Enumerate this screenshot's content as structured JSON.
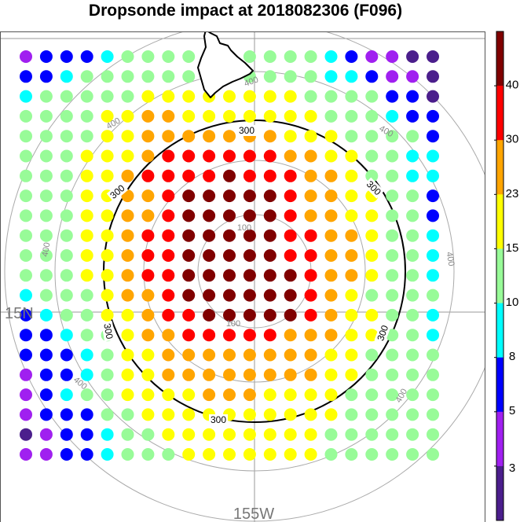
{
  "title": "Dropsonde impact at 2018082306 (F096)",
  "map": {
    "lat_label": "15N",
    "lon_label": "155W"
  },
  "colors": {
    "bins": [
      "#4b1e8c",
      "#a020f0",
      "#0000ff",
      "#00ffff",
      "#98fb98",
      "#ffff00",
      "#ffa500",
      "#ff0000",
      "#800000"
    ],
    "ring_gray": "#aaaaaa",
    "ring_black": "#000000",
    "coast": "#000000"
  },
  "colorbar": {
    "ticks": [
      "3",
      "5",
      "8",
      "10",
      "15",
      "23",
      "30",
      "40"
    ]
  },
  "rings": {
    "labels_gray": [
      {
        "text": "100"
      },
      {
        "text": "100"
      },
      {
        "text": "400"
      },
      {
        "text": "400"
      },
      {
        "text": "400"
      },
      {
        "text": "400"
      },
      {
        "text": "400"
      },
      {
        "text": "400"
      },
      {
        "text": "400"
      }
    ],
    "labels_black": [
      {
        "text": "300"
      },
      {
        "text": "300"
      },
      {
        "text": "300"
      },
      {
        "text": "300"
      },
      {
        "text": "300"
      }
    ]
  },
  "chart_data": {
    "type": "heatmap",
    "title": "Dropsonde impact at 2018082306 (F096)",
    "colorbar_ticks": [
      3,
      5,
      8,
      10,
      15,
      23,
      30,
      40
    ],
    "rows": 21,
    "cols": 21,
    "row_labels_shown": [
      "15N"
    ],
    "col_labels_shown": [
      "155W"
    ],
    "grid": [
      [
        1,
        2,
        2,
        2,
        3,
        4,
        4,
        4,
        4,
        4,
        4,
        4,
        4,
        4,
        4,
        3,
        2,
        1,
        1,
        0,
        0
      ],
      [
        2,
        2,
        3,
        4,
        4,
        4,
        4,
        4,
        4,
        4,
        4,
        4,
        4,
        4,
        4,
        3,
        3,
        2,
        1,
        1,
        0
      ],
      [
        3,
        4,
        4,
        4,
        4,
        4,
        5,
        5,
        5,
        5,
        5,
        5,
        5,
        5,
        4,
        4,
        4,
        4,
        2,
        2,
        0
      ],
      [
        4,
        4,
        4,
        4,
        5,
        5,
        6,
        6,
        5,
        5,
        5,
        5,
        5,
        5,
        5,
        4,
        4,
        4,
        3,
        2,
        2
      ],
      [
        4,
        4,
        4,
        4,
        5,
        5,
        6,
        6,
        6,
        6,
        6,
        6,
        6,
        5,
        5,
        5,
        4,
        4,
        4,
        4,
        2
      ],
      [
        4,
        4,
        4,
        5,
        5,
        5,
        6,
        7,
        7,
        7,
        7,
        7,
        7,
        6,
        6,
        5,
        5,
        4,
        4,
        3,
        3
      ],
      [
        4,
        4,
        4,
        5,
        5,
        6,
        7,
        7,
        7,
        7,
        8,
        7,
        7,
        7,
        6,
        6,
        5,
        4,
        4,
        3,
        3
      ],
      [
        4,
        4,
        4,
        5,
        5,
        6,
        6,
        7,
        8,
        8,
        8,
        8,
        8,
        7,
        6,
        6,
        5,
        5,
        4,
        4,
        2
      ],
      [
        4,
        4,
        4,
        5,
        5,
        6,
        6,
        7,
        8,
        8,
        8,
        8,
        8,
        7,
        6,
        6,
        5,
        5,
        4,
        4,
        2
      ],
      [
        4,
        4,
        4,
        5,
        5,
        6,
        7,
        7,
        8,
        8,
        8,
        8,
        8,
        7,
        7,
        6,
        6,
        5,
        4,
        4,
        3
      ],
      [
        4,
        4,
        4,
        5,
        5,
        6,
        7,
        7,
        8,
        8,
        8,
        8,
        8,
        7,
        7,
        6,
        6,
        5,
        4,
        4,
        3
      ],
      [
        4,
        4,
        4,
        5,
        5,
        6,
        7,
        7,
        8,
        8,
        8,
        8,
        8,
        8,
        7,
        6,
        6,
        5,
        4,
        4,
        3
      ],
      [
        3,
        4,
        4,
        4,
        5,
        6,
        6,
        7,
        8,
        8,
        8,
        8,
        8,
        8,
        7,
        6,
        5,
        4,
        4,
        4,
        4
      ],
      [
        2,
        3,
        4,
        4,
        5,
        5,
        6,
        7,
        7,
        8,
        8,
        8,
        8,
        8,
        7,
        6,
        5,
        5,
        4,
        4,
        3
      ],
      [
        2,
        2,
        3,
        4,
        4,
        5,
        6,
        6,
        7,
        7,
        7,
        7,
        7,
        6,
        6,
        6,
        5,
        5,
        4,
        4,
        3
      ],
      [
        2,
        2,
        2,
        3,
        4,
        5,
        5,
        6,
        6,
        6,
        6,
        6,
        6,
        6,
        6,
        5,
        5,
        4,
        4,
        4,
        4
      ],
      [
        1,
        2,
        2,
        3,
        4,
        5,
        5,
        6,
        6,
        6,
        6,
        6,
        6,
        6,
        6,
        5,
        5,
        4,
        4,
        4,
        4
      ],
      [
        1,
        2,
        3,
        4,
        4,
        5,
        5,
        5,
        5,
        6,
        6,
        6,
        5,
        5,
        5,
        5,
        4,
        4,
        4,
        4,
        4
      ],
      [
        1,
        2,
        2,
        2,
        4,
        4,
        5,
        5,
        5,
        5,
        5,
        5,
        5,
        5,
        5,
        5,
        4,
        4,
        4,
        4,
        4
      ],
      [
        0,
        1,
        2,
        2,
        3,
        4,
        4,
        5,
        5,
        5,
        5,
        5,
        5,
        5,
        5,
        4,
        4,
        4,
        4,
        4,
        4
      ],
      [
        1,
        1,
        2,
        2,
        3,
        4,
        4,
        4,
        5,
        5,
        5,
        5,
        5,
        5,
        5,
        4,
        4,
        4,
        4,
        4,
        4
      ]
    ]
  }
}
